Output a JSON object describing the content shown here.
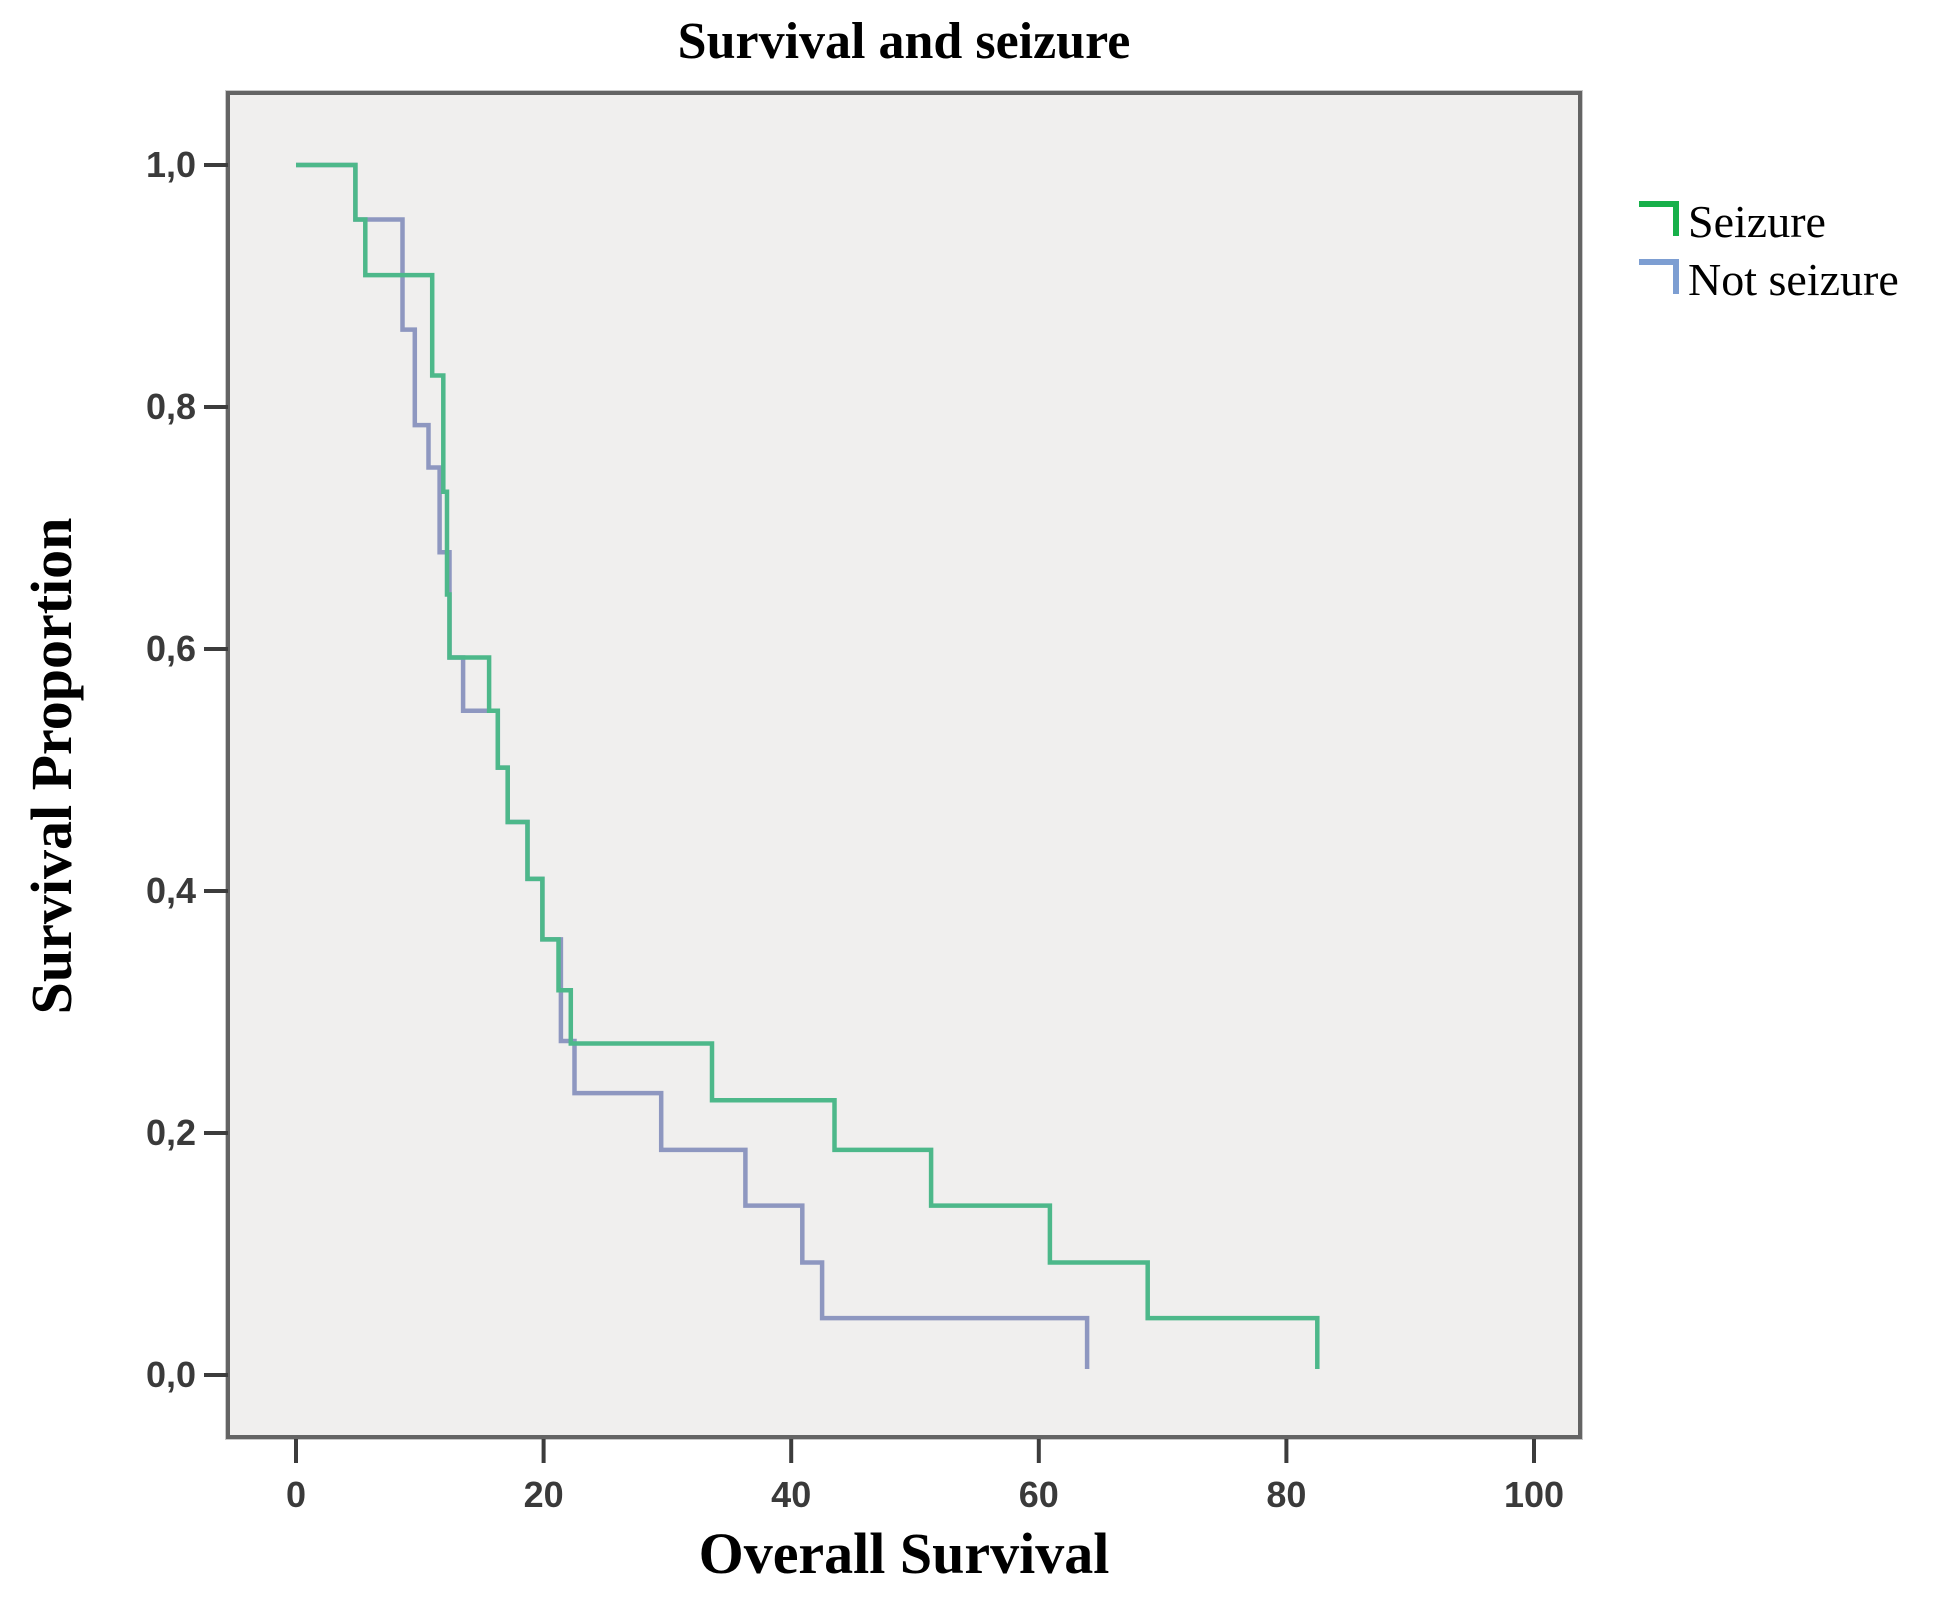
{
  "title": "Survival and seizure",
  "x_axis": {
    "label": "Overall Survival"
  },
  "y_axis": {
    "label": "Survival Proportion"
  },
  "legend": {
    "items": [
      {
        "label": "Seizure",
        "color": "#17b04a"
      },
      {
        "label": "Not seizure",
        "color": "#7d9ed2"
      }
    ]
  },
  "colors": {
    "plot_background": "#f0efee",
    "plot_border": "#646464",
    "tick": "#3c3c3c",
    "tick_text": "#3a3a3a",
    "seizure_line": "#4db88a",
    "not_seizure_line": "#8e97c0"
  },
  "chart_data": {
    "type": "line",
    "subtype": "kaplan-meier-step",
    "title": "Survival and seizure",
    "xlabel": "Overall Survival",
    "ylabel": "Survival Proportion",
    "xlim": [
      -5.5,
      103.7
    ],
    "ylim": [
      -0.051,
      1.06
    ],
    "x_ticks": [
      0,
      20,
      40,
      60,
      80,
      100
    ],
    "y_ticks": [
      1.0,
      0.8,
      0.6,
      0.4,
      0.2,
      0.0
    ],
    "y_tick_labels": [
      "1,0",
      "0,8",
      "0,6",
      "0,4",
      "0,2",
      "0,0"
    ],
    "grid": false,
    "legend_position": "outside-right-top",
    "series": [
      {
        "name": "Seizure",
        "color": "#4db88a",
        "legend_color": "#17b04a",
        "steps": [
          [
            0,
            1.0
          ],
          [
            4.8,
            0.955
          ],
          [
            5.6,
            0.909
          ],
          [
            11.0,
            0.826
          ],
          [
            11.9,
            0.73
          ],
          [
            12.2,
            0.645
          ],
          [
            12.4,
            0.593
          ],
          [
            15.6,
            0.549
          ],
          [
            16.3,
            0.502
          ],
          [
            17.1,
            0.457
          ],
          [
            18.7,
            0.41
          ],
          [
            19.9,
            0.36
          ],
          [
            21.2,
            0.318
          ],
          [
            22.2,
            0.274
          ],
          [
            33.6,
            0.227
          ],
          [
            43.5,
            0.186
          ],
          [
            51.3,
            0.14
          ],
          [
            60.9,
            0.093
          ],
          [
            68.8,
            0.047
          ],
          [
            82.5,
            0.005
          ]
        ]
      },
      {
        "name": "Not seizure",
        "color": "#8e97c0",
        "legend_color": "#7d9ed2",
        "steps": [
          [
            0,
            1.0
          ],
          [
            4.8,
            0.955
          ],
          [
            8.6,
            0.864
          ],
          [
            9.6,
            0.785
          ],
          [
            10.7,
            0.75
          ],
          [
            11.6,
            0.68
          ],
          [
            12.4,
            0.593
          ],
          [
            13.5,
            0.549
          ],
          [
            16.3,
            0.502
          ],
          [
            17.1,
            0.457
          ],
          [
            18.7,
            0.41
          ],
          [
            19.9,
            0.36
          ],
          [
            21.4,
            0.276
          ],
          [
            22.5,
            0.233
          ],
          [
            29.5,
            0.186
          ],
          [
            36.3,
            0.14
          ],
          [
            40.9,
            0.093
          ],
          [
            42.5,
            0.047
          ],
          [
            63.9,
            0.005
          ]
        ]
      }
    ]
  }
}
